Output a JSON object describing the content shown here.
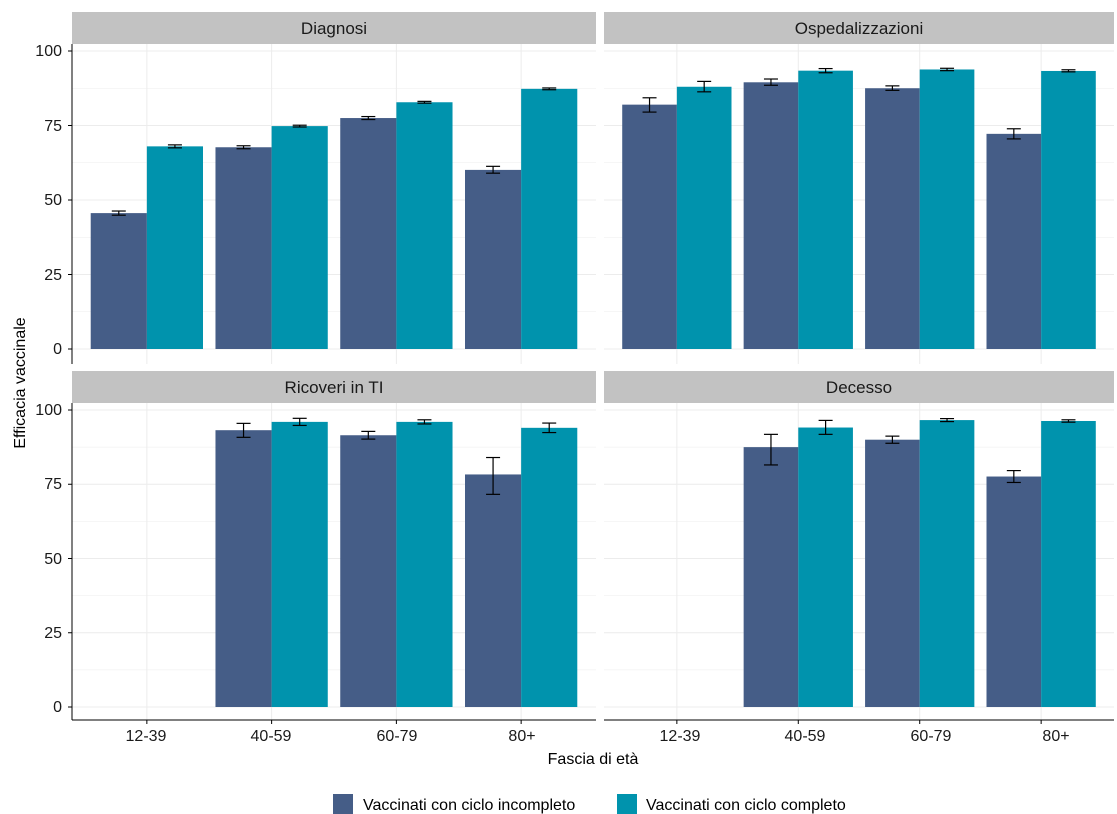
{
  "colors": {
    "incompleto": "#455d87",
    "completo": "#0093ad",
    "strip_bg": "#c2c2c2",
    "grid": "#ececec"
  },
  "axis": {
    "ylabel": "Efficacia vaccinale",
    "xlabel": "Fascia di età",
    "yticks": [
      "0",
      "25",
      "50",
      "75",
      "100"
    ]
  },
  "legend": {
    "items": [
      {
        "label": "Vaccinati con ciclo incompleto",
        "color_key": "incompleto"
      },
      {
        "label": "Vaccinati con ciclo completo",
        "color_key": "completo"
      }
    ]
  },
  "chart_data": {
    "type": "bar",
    "categories": [
      "12-39",
      "40-59",
      "60-79",
      "80+"
    ],
    "ylim": [
      0,
      100
    ],
    "xlabel": "Fascia di età",
    "ylabel": "Efficacia vaccinale",
    "legend_position": "bottom",
    "grid": true,
    "panels": [
      {
        "title": "Diagnosi",
        "series": [
          {
            "name": "Vaccinati con ciclo incompleto",
            "values": [
              45.6,
              67.7,
              77.5,
              60.1
            ],
            "err_low": [
              44.9,
              67.2,
              77.0,
              59.0
            ],
            "err_high": [
              46.3,
              68.2,
              78.0,
              61.3
            ]
          },
          {
            "name": "Vaccinati con ciclo completo",
            "values": [
              68.0,
              74.8,
              82.8,
              87.3
            ],
            "err_low": [
              67.5,
              74.5,
              82.5,
              87.0
            ],
            "err_high": [
              68.5,
              75.1,
              83.1,
              87.6
            ]
          }
        ]
      },
      {
        "title": "Ospedalizzazioni",
        "series": [
          {
            "name": "Vaccinati con ciclo incompleto",
            "values": [
              82.0,
              89.5,
              87.5,
              72.2
            ],
            "err_low": [
              79.5,
              88.5,
              86.8,
              70.5
            ],
            "err_high": [
              84.3,
              90.6,
              88.3,
              73.9
            ]
          },
          {
            "name": "Vaccinati con ciclo completo",
            "values": [
              88.0,
              93.4,
              93.8,
              93.3
            ],
            "err_low": [
              86.3,
              92.7,
              93.4,
              93.0
            ],
            "err_high": [
              89.8,
              94.1,
              94.2,
              93.7
            ]
          }
        ]
      },
      {
        "title": "Ricoveri in TI",
        "series": [
          {
            "name": "Vaccinati con ciclo incompleto",
            "values": [
              null,
              93.2,
              91.5,
              78.3
            ],
            "err_low": [
              null,
              90.8,
              90.2,
              71.6
            ],
            "err_high": [
              null,
              95.5,
              92.8,
              84.0
            ]
          },
          {
            "name": "Vaccinati con ciclo completo",
            "values": [
              null,
              96.0,
              96.0,
              94.0
            ],
            "err_low": [
              null,
              94.8,
              95.3,
              92.4
            ],
            "err_high": [
              null,
              97.2,
              96.7,
              95.6
            ]
          }
        ]
      },
      {
        "title": "Decesso",
        "series": [
          {
            "name": "Vaccinati con ciclo incompleto",
            "values": [
              null,
              87.5,
              90.0,
              77.6
            ],
            "err_low": [
              null,
              81.5,
              88.8,
              75.6
            ],
            "err_high": [
              null,
              91.8,
              91.2,
              79.6
            ]
          },
          {
            "name": "Vaccinati con ciclo completo",
            "values": [
              null,
              94.1,
              96.6,
              96.3
            ],
            "err_low": [
              null,
              91.8,
              96.1,
              95.9
            ],
            "err_high": [
              null,
              96.5,
              97.1,
              96.7
            ]
          }
        ]
      }
    ]
  }
}
